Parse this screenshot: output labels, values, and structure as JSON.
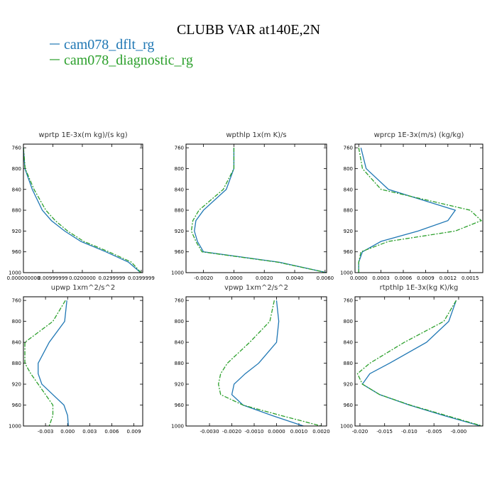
{
  "title": "CLUBB VAR at140E,2N",
  "series": [
    {
      "name": "cam078_dflt_rg",
      "color": "#1f77b4",
      "linestyle": "solid"
    },
    {
      "name": "cam078_diagnostic_rg",
      "color": "#2ca02c",
      "linestyle": "dashdot"
    }
  ],
  "chart_data": [
    {
      "type": "line",
      "title": "wprtp  1E-3x(m kg)/(s kg)",
      "levels": [
        760,
        800,
        840,
        880,
        900,
        920,
        940,
        960,
        980,
        1000
      ],
      "series": [
        {
          "values": [
            0.0,
            0.0005,
            0.003,
            0.0064,
            0.0095,
            0.014,
            0.0195,
            0.028,
            0.0357,
            0.0398
          ]
        },
        {
          "values": [
            0.0,
            0.0006,
            0.0036,
            0.0076,
            0.0108,
            0.015,
            0.0205,
            0.029,
            0.0367,
            0.0399
          ]
        }
      ],
      "xlim": [
        0,
        0.0405
      ],
      "xticks": [
        {
          "value": 0,
          "label": "0.000000000"
        },
        {
          "value": 0.01,
          "label": "0.00999999"
        },
        {
          "value": 0.02,
          "label": "0.0200000"
        },
        {
          "value": 0.03,
          "label": "0.0299999"
        },
        {
          "value": 0.04,
          "label": "0.0399999"
        }
      ],
      "ylim": [
        753,
        1000
      ],
      "yticks": [
        760,
        800,
        840,
        880,
        920,
        960,
        1000
      ]
    },
    {
      "type": "line",
      "title": "wpthlp  1x(m K)/s",
      "levels": [
        760,
        800,
        840,
        880,
        900,
        920,
        940,
        960,
        980,
        1000
      ],
      "series": [
        {
          "values": [
            0.0,
            0.0,
            -0.0005,
            -0.002,
            -0.0025,
            -0.0026,
            -0.0024,
            -0.002,
            0.003,
            0.0061
          ]
        },
        {
          "values": [
            0.0,
            0.0,
            -0.0007,
            -0.0023,
            -0.0027,
            -0.0028,
            -0.0025,
            -0.0021,
            0.0029,
            0.0061
          ]
        }
      ],
      "xlim": [
        -0.00315,
        0.0061
      ],
      "xticks": [
        {
          "value": -0.002,
          "label": "-0.0020"
        },
        {
          "value": 0,
          "label": "0.0000"
        },
        {
          "value": 0.002,
          "label": "0.0020"
        },
        {
          "value": 0.004,
          "label": "0.0040"
        },
        {
          "value": 0.006,
          "label": "0.0060"
        }
      ],
      "ylim": [
        753,
        1000
      ],
      "yticks": [
        760,
        800,
        840,
        880,
        920,
        960,
        1000
      ]
    },
    {
      "type": "line",
      "title": "wprcp  1E-3x(m/s) (kg/kg)",
      "levels": [
        760,
        800,
        840,
        880,
        900,
        920,
        940,
        960,
        980,
        1000
      ],
      "series": [
        {
          "values": [
            3e-05,
            0.0001,
            0.0004,
            0.0013,
            0.0012,
            0.0008,
            0.0003,
            5e-05,
            0.0,
            0.0
          ]
        },
        {
          "values": [
            0.0,
            5e-05,
            0.0003,
            0.0015,
            0.00165,
            0.0013,
            0.0004,
            3e-05,
            0.0,
            0.0
          ]
        }
      ],
      "xlim": [
        -5e-05,
        0.00167
      ],
      "xticks": [
        {
          "value": 0,
          "label": "0.0000"
        },
        {
          "value": 0.0003,
          "label": "0.0003"
        },
        {
          "value": 0.0006,
          "label": "0.0006"
        },
        {
          "value": 0.0009,
          "label": "0.0009"
        },
        {
          "value": 0.0012,
          "label": "0.0012"
        },
        {
          "value": 0.0015,
          "label": "0.0015"
        }
      ],
      "ylim": [
        753,
        1000
      ],
      "yticks": [
        760,
        800,
        840,
        880,
        920,
        960,
        1000
      ]
    },
    {
      "type": "line",
      "title": "upwp   1xm^2/s^2",
      "levels": [
        760,
        800,
        840,
        880,
        900,
        920,
        940,
        960,
        980,
        1000
      ],
      "series": [
        {
          "values": [
            -0.0001,
            -0.0004,
            -0.0025,
            -0.004,
            -0.004,
            -0.0035,
            -0.002,
            -0.0005,
            0.0,
            0.0001
          ]
        },
        {
          "values": [
            -0.0003,
            -0.002,
            -0.0058,
            -0.0058,
            -0.005,
            -0.004,
            -0.003,
            -0.002,
            -0.002,
            -0.0025
          ]
        }
      ],
      "xlim": [
        -0.006,
        0.0102
      ],
      "xticks": [
        {
          "value": -0.003,
          "label": "-0.003"
        },
        {
          "value": 0,
          "label": "0.000"
        },
        {
          "value": 0.003,
          "label": "0.003"
        },
        {
          "value": 0.006,
          "label": "0.006"
        },
        {
          "value": 0.009,
          "label": "0.009"
        }
      ],
      "ylim": [
        753,
        1000
      ],
      "yticks": [
        760,
        800,
        840,
        880,
        920,
        960,
        1000
      ]
    },
    {
      "type": "line",
      "title": "vpwp   1xm^2/s^2",
      "levels": [
        760,
        800,
        840,
        880,
        900,
        920,
        940,
        960,
        980,
        1000
      ],
      "series": [
        {
          "values": [
            0.0,
            0.0001,
            0.0,
            -0.0008,
            -0.0014,
            -0.0019,
            -0.002,
            -0.0015,
            -0.0002,
            0.0012
          ]
        },
        {
          "values": [
            -0.0001,
            -0.0003,
            -0.0012,
            -0.0022,
            -0.0025,
            -0.0026,
            -0.0025,
            -0.0015,
            0.0002,
            0.002
          ]
        }
      ],
      "xlim": [
        -0.00405,
        0.00224
      ],
      "xticks": [
        {
          "value": -0.003,
          "label": "-0.0030"
        },
        {
          "value": -0.002,
          "label": "-0.0020"
        },
        {
          "value": -0.001,
          "label": "-0.0010"
        },
        {
          "value": 0,
          "label": "0.0000"
        },
        {
          "value": 0.001,
          "label": "0.0010"
        },
        {
          "value": 0.002,
          "label": "0.0020"
        }
      ],
      "ylim": [
        753,
        1000
      ],
      "yticks": [
        760,
        800,
        840,
        880,
        920,
        960,
        1000
      ]
    },
    {
      "type": "line",
      "title": "rtpthlp   1E-3x(kg K)/kg",
      "levels": [
        760,
        800,
        840,
        880,
        900,
        920,
        940,
        960,
        980,
        1000
      ],
      "series": [
        {
          "values": [
            -0.0005,
            -0.002,
            -0.0065,
            -0.014,
            -0.018,
            -0.0195,
            -0.016,
            -0.01,
            -0.003,
            0.0045
          ]
        },
        {
          "values": [
            -0.0005,
            -0.003,
            -0.011,
            -0.018,
            -0.0205,
            -0.0195,
            -0.016,
            -0.0098,
            -0.0025,
            0.0048
          ]
        }
      ],
      "xlim": [
        -0.021,
        0.0049
      ],
      "xticks": [
        {
          "value": -0.02,
          "label": "-0.020"
        },
        {
          "value": -0.015,
          "label": "-0.015"
        },
        {
          "value": -0.01,
          "label": "-0.010"
        },
        {
          "value": -0.005,
          "label": "-0.005"
        },
        {
          "value": 0,
          "label": "-0.000"
        }
      ],
      "ylim": [
        753,
        1000
      ],
      "yticks": [
        760,
        800,
        840,
        880,
        920,
        960,
        1000
      ]
    }
  ]
}
